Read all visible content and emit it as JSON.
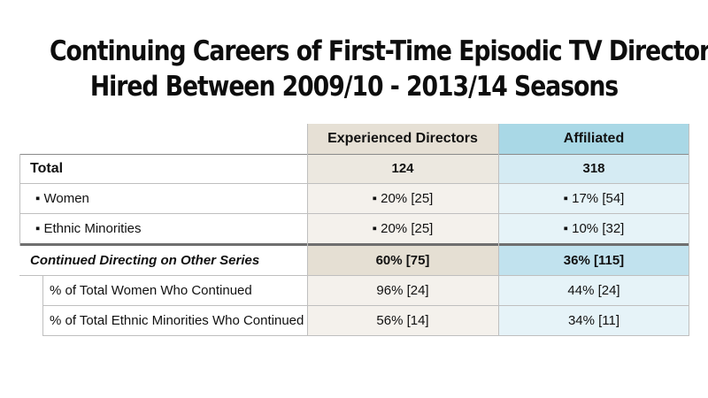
{
  "title": {
    "line1": "Continuing Careers of First-Time Episodic TV Directors",
    "line2": "Hired Between 2009/10 - 2013/14 Seasons"
  },
  "colors": {
    "experienced_header": "#e6e0d5",
    "affiliated_header": "#a9d8e6"
  },
  "chart_data": {
    "type": "table",
    "columns": [
      "",
      "Experienced Directors",
      "Affiliated"
    ],
    "rows": [
      {
        "label": "Total",
        "experienced": "124",
        "affiliated": "318"
      },
      {
        "label": "▪ Women",
        "experienced": "▪ 20% [25]",
        "affiliated": "▪ 17% [54]"
      },
      {
        "label": "▪ Ethnic Minorities",
        "experienced": "▪ 20% [25]",
        "affiliated": "▪ 10% [32]"
      },
      {
        "label": "Continued Directing on Other Series",
        "experienced": "60% [75]",
        "affiliated": "36% [115]"
      },
      {
        "label": "% of Total Women Who Continued",
        "experienced": "96% [24]",
        "affiliated": "44% [24]"
      },
      {
        "label": "% of Total Ethnic Minorities Who Continued",
        "experienced": "56% [14]",
        "affiliated": "34% [11]"
      }
    ]
  }
}
